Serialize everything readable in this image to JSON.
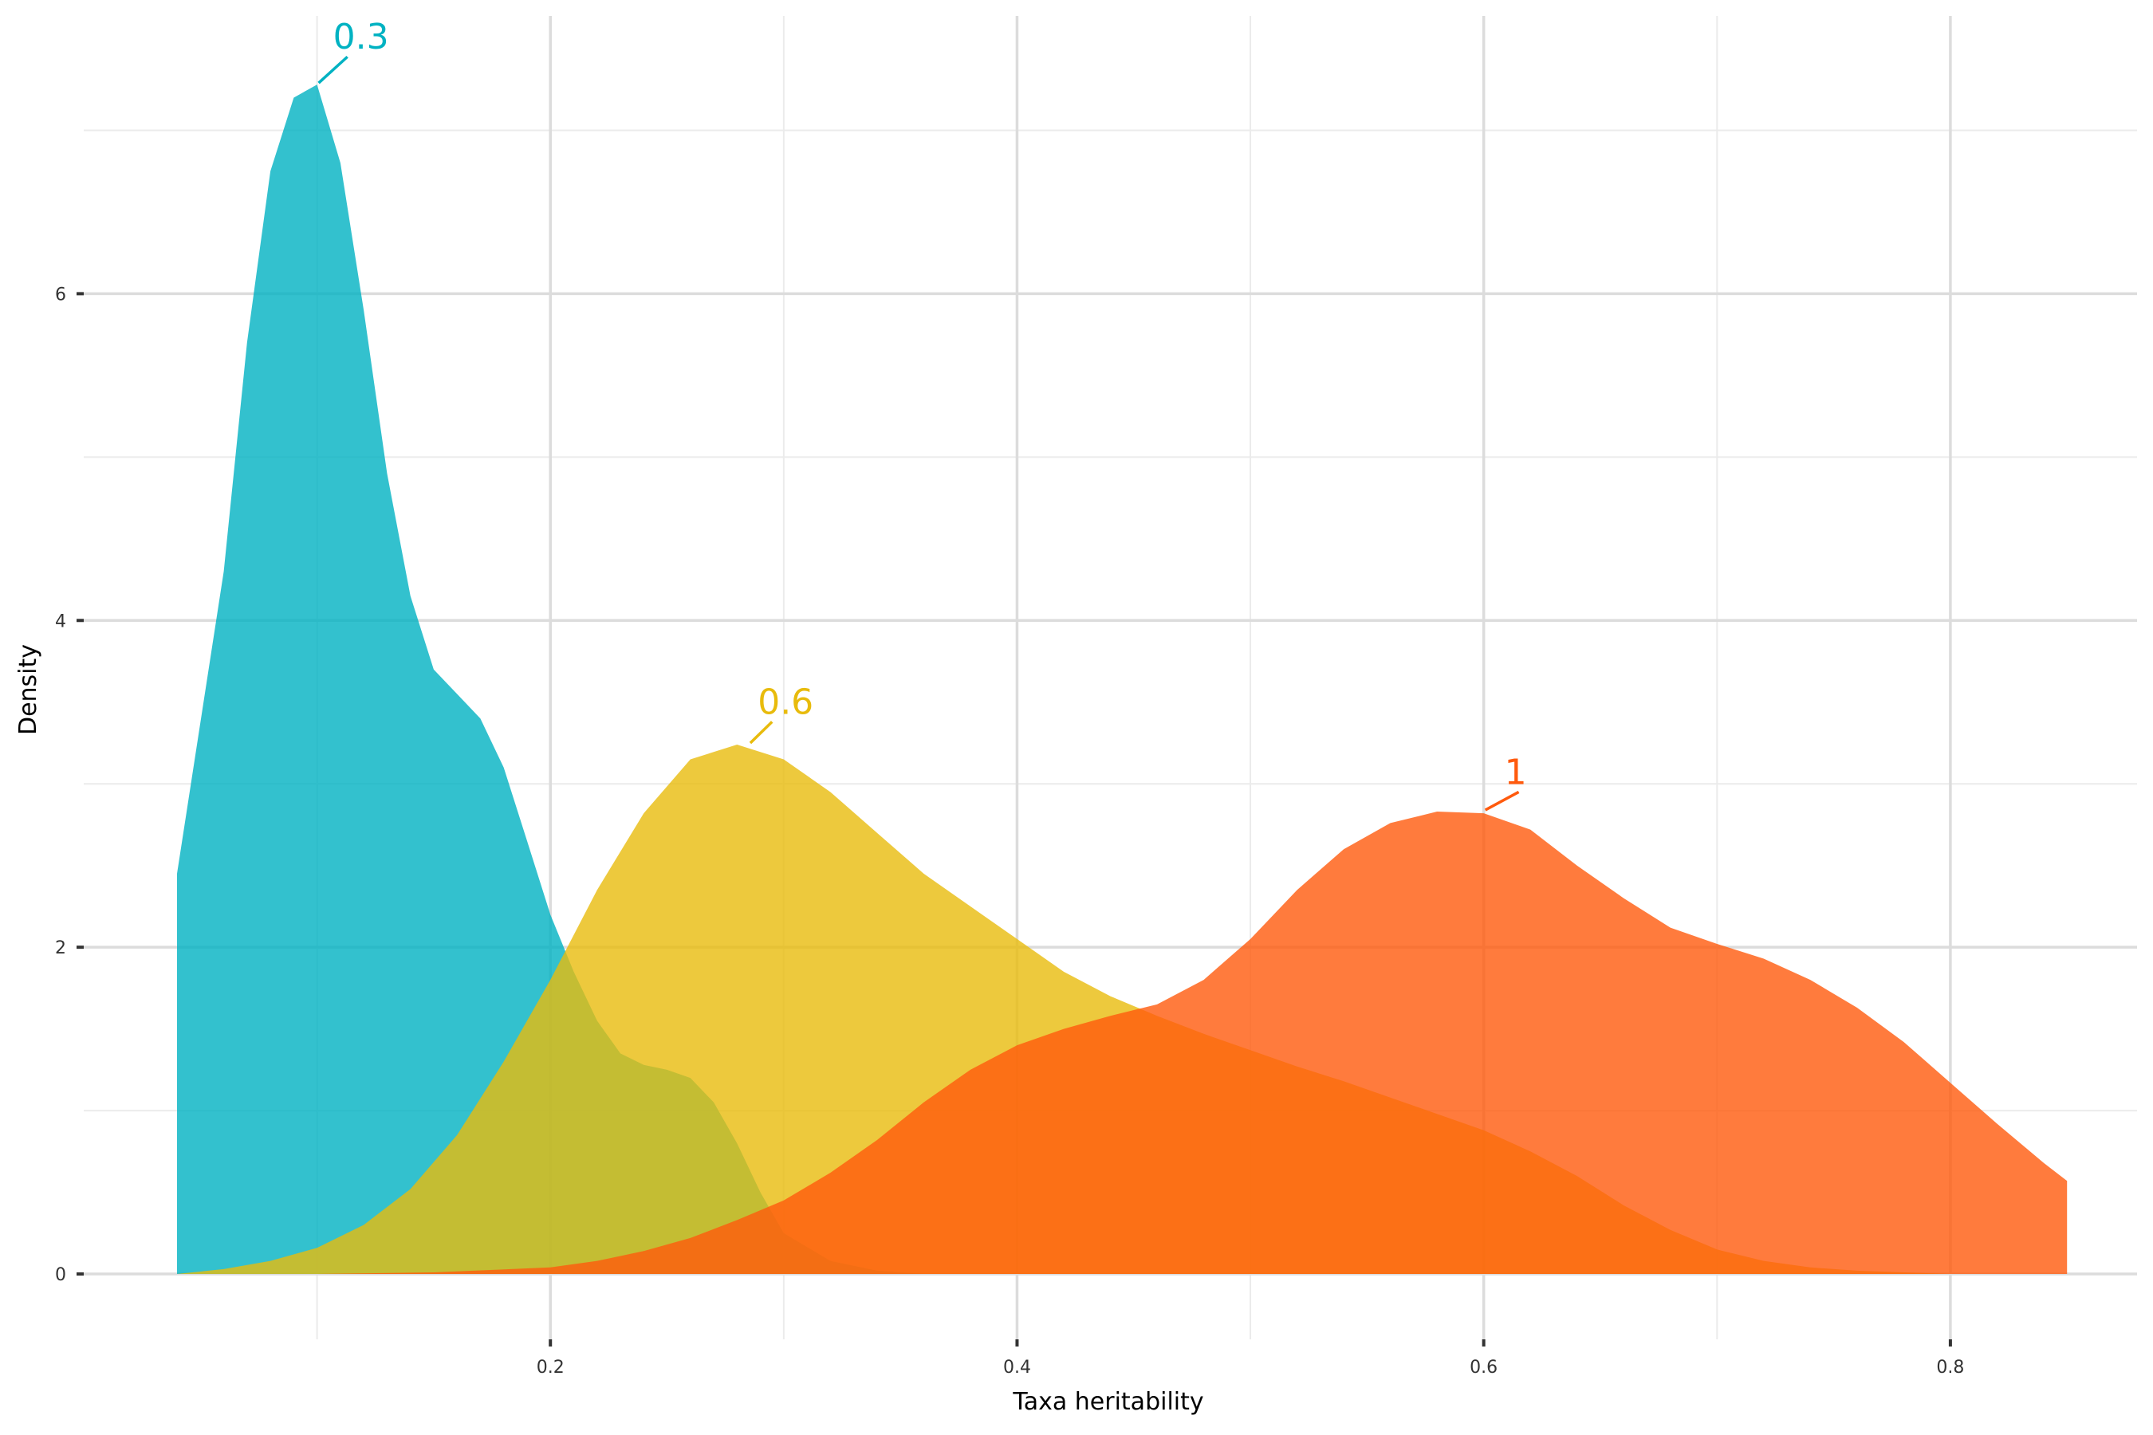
{
  "chart_data": {
    "type": "area",
    "xlabel": "Taxa heritability",
    "ylabel": "Density",
    "xlim": [
      0.0,
      0.88
    ],
    "ylim": [
      -0.4,
      7.7
    ],
    "x_ticks": [
      0.2,
      0.4,
      0.6,
      0.8
    ],
    "y_ticks": [
      0,
      2,
      4,
      6
    ],
    "grid": true,
    "legend": "none",
    "series": [
      {
        "peak_label": "0.3",
        "color": "#00B2C2",
        "peak": [
          0.1,
          7.28
        ],
        "label_anchor": [
          0.113,
          7.45
        ],
        "x": [
          0.04,
          0.06,
          0.07,
          0.08,
          0.09,
          0.1,
          0.11,
          0.12,
          0.13,
          0.14,
          0.15,
          0.16,
          0.17,
          0.18,
          0.19,
          0.2,
          0.21,
          0.22,
          0.23,
          0.24,
          0.25,
          0.26,
          0.27,
          0.28,
          0.29,
          0.3,
          0.32,
          0.34,
          0.36,
          0.38,
          0.4,
          0.5,
          0.6,
          0.7,
          0.8,
          0.85
        ],
        "y": [
          2.45,
          4.3,
          5.7,
          6.75,
          7.2,
          7.28,
          6.8,
          5.9,
          4.9,
          4.15,
          3.7,
          3.55,
          3.4,
          3.1,
          2.65,
          2.2,
          1.85,
          1.55,
          1.35,
          1.28,
          1.25,
          1.2,
          1.05,
          0.8,
          0.5,
          0.25,
          0.08,
          0.02,
          0.0,
          0.0,
          0.0,
          0.0,
          0.0,
          0.0,
          0.0,
          0.0
        ]
      },
      {
        "peak_label": "0.6",
        "color": "#E8BB0C",
        "peak": [
          0.285,
          3.24
        ],
        "label_anchor": [
          0.295,
          3.38
        ],
        "x": [
          0.04,
          0.06,
          0.08,
          0.1,
          0.12,
          0.14,
          0.16,
          0.18,
          0.2,
          0.22,
          0.24,
          0.26,
          0.28,
          0.3,
          0.32,
          0.34,
          0.36,
          0.38,
          0.4,
          0.42,
          0.44,
          0.46,
          0.48,
          0.5,
          0.52,
          0.54,
          0.56,
          0.58,
          0.6,
          0.62,
          0.64,
          0.66,
          0.68,
          0.7,
          0.72,
          0.74,
          0.76,
          0.78,
          0.8,
          0.85
        ],
        "y": [
          0.0,
          0.03,
          0.08,
          0.16,
          0.3,
          0.52,
          0.85,
          1.3,
          1.8,
          2.35,
          2.82,
          3.15,
          3.24,
          3.15,
          2.95,
          2.7,
          2.45,
          2.25,
          2.05,
          1.85,
          1.7,
          1.58,
          1.47,
          1.37,
          1.27,
          1.18,
          1.08,
          0.98,
          0.88,
          0.75,
          0.6,
          0.42,
          0.27,
          0.15,
          0.08,
          0.04,
          0.02,
          0.01,
          0.0,
          0.0
        ]
      },
      {
        "peak_label": "1",
        "color": "#FF5A0D",
        "peak": [
          0.6,
          2.83
        ],
        "label_anchor": [
          0.615,
          2.95
        ],
        "x": [
          0.04,
          0.1,
          0.15,
          0.2,
          0.22,
          0.24,
          0.26,
          0.28,
          0.3,
          0.32,
          0.34,
          0.36,
          0.38,
          0.4,
          0.42,
          0.44,
          0.46,
          0.48,
          0.5,
          0.52,
          0.54,
          0.56,
          0.58,
          0.6,
          0.62,
          0.64,
          0.66,
          0.68,
          0.7,
          0.72,
          0.74,
          0.76,
          0.78,
          0.8,
          0.82,
          0.84,
          0.85
        ],
        "y": [
          0.0,
          0.0,
          0.01,
          0.04,
          0.08,
          0.14,
          0.22,
          0.33,
          0.45,
          0.62,
          0.82,
          1.05,
          1.25,
          1.4,
          1.5,
          1.58,
          1.65,
          1.8,
          2.05,
          2.35,
          2.6,
          2.76,
          2.83,
          2.82,
          2.72,
          2.5,
          2.3,
          2.12,
          2.02,
          1.93,
          1.8,
          1.63,
          1.42,
          1.17,
          0.92,
          0.68,
          0.57
        ]
      }
    ]
  }
}
